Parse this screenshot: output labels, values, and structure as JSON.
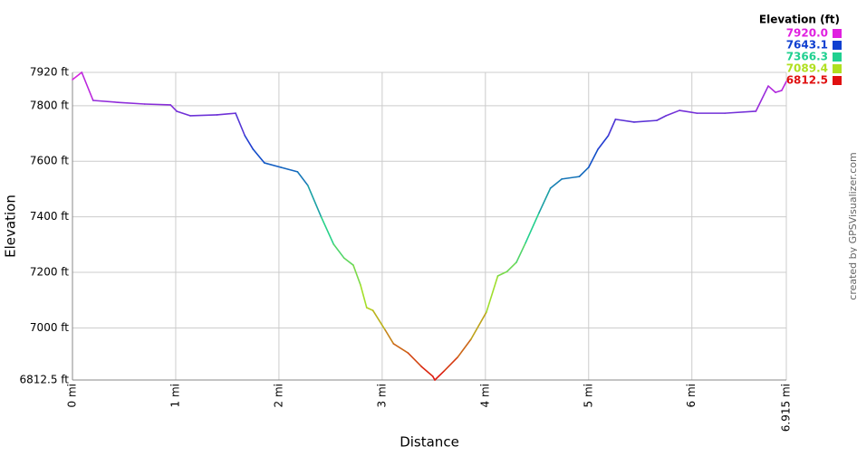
{
  "chart_data": {
    "type": "line",
    "x_label": "Distance",
    "y_label": "Elevation",
    "x": [
      0,
      0.09,
      0.2,
      0.44,
      0.7,
      0.95,
      1.01,
      1.14,
      1.4,
      1.58,
      1.67,
      1.75,
      1.86,
      2.02,
      2.18,
      2.28,
      2.41,
      2.53,
      2.63,
      2.72,
      2.79,
      2.85,
      2.91,
      3.03,
      3.11,
      3.25,
      3.38,
      3.49,
      3.51,
      3.6,
      3.73,
      3.86,
      4.01,
      4.12,
      4.21,
      4.3,
      4.39,
      4.52,
      4.63,
      4.74,
      4.91,
      5.0,
      5.09,
      5.19,
      5.26,
      5.44,
      5.66,
      5.75,
      5.88,
      6.05,
      6.32,
      6.62,
      6.74,
      6.81,
      6.87,
      6.915
    ],
    "values": [
      7894,
      7920,
      7819,
      7812,
      7806,
      7803,
      7780,
      7764,
      7767,
      7773,
      7692,
      7643,
      7594,
      7578,
      7562,
      7513,
      7399,
      7301,
      7252,
      7226,
      7155,
      7073,
      7063,
      6992,
      6943,
      6910,
      6861,
      6826,
      6812.5,
      6845,
      6894,
      6959,
      7057,
      7187,
      7203,
      7236,
      7307,
      7415,
      7503,
      7536,
      7545,
      7578,
      7643,
      7692,
      7751,
      7741,
      7747,
      7764,
      7783,
      7773,
      7773,
      7780,
      7871,
      7848,
      7855,
      7887
    ],
    "xlim": [
      0,
      6.915
    ],
    "xticks": [
      {
        "value": 0,
        "label": "0 mi"
      },
      {
        "value": 1,
        "label": "1 mi"
      },
      {
        "value": 2,
        "label": "2 mi"
      },
      {
        "value": 3,
        "label": "3 mi"
      },
      {
        "value": 4,
        "label": "4 mi"
      },
      {
        "value": 5,
        "label": "5 mi"
      },
      {
        "value": 6,
        "label": "6 mi"
      },
      {
        "value": 6.915,
        "label": "6.915 mi"
      }
    ],
    "ylim": [
      6812.5,
      7920
    ],
    "yticks": [
      {
        "value": 6812.5,
        "label": "6812.5 ft"
      },
      {
        "value": 7000,
        "label": "7000 ft"
      },
      {
        "value": 7200,
        "label": "7200 ft"
      },
      {
        "value": 7400,
        "label": "7400 ft"
      },
      {
        "value": 7600,
        "label": "7600 ft"
      },
      {
        "value": 7800,
        "label": "7800 ft"
      },
      {
        "value": 7920,
        "label": "7920 ft"
      }
    ],
    "grid": true,
    "legend_title": "Elevation (ft)",
    "color_scale": [
      {
        "value": 7920.0,
        "label": "7920.0",
        "color": "#e020e0"
      },
      {
        "value": 7643.1,
        "label": "7643.1",
        "color": "#1040d0"
      },
      {
        "value": 7366.3,
        "label": "7366.3",
        "color": "#20d090"
      },
      {
        "value": 7089.4,
        "label": "7089.4",
        "color": "#b0e020"
      },
      {
        "value": 6812.5,
        "label": "6812.5",
        "color": "#e01010"
      }
    ],
    "credit": "created by GPSVisualizer.com"
  }
}
